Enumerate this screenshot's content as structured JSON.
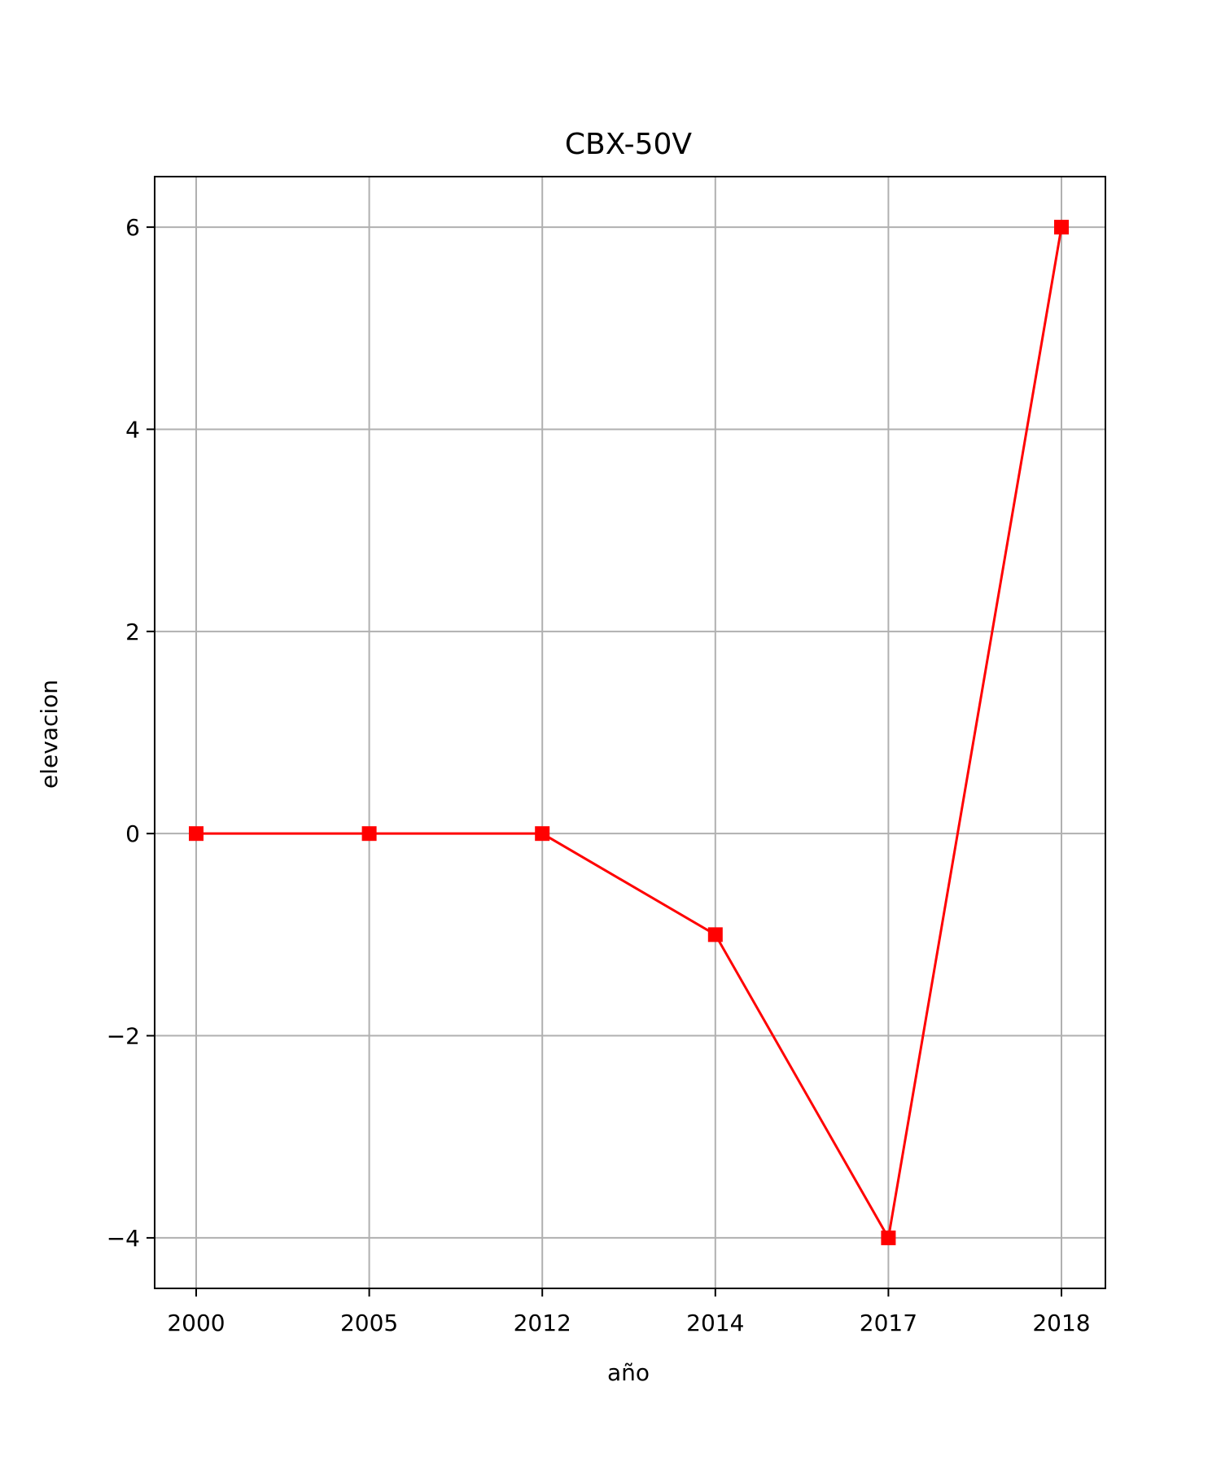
{
  "chart_data": {
    "type": "line",
    "title": "CBX-50V",
    "xlabel": "año",
    "ylabel": "elevacion",
    "categories": [
      "2000",
      "2005",
      "2012",
      "2014",
      "2017",
      "2018"
    ],
    "series": [
      {
        "values": [
          0,
          0,
          0,
          -1,
          -4,
          6
        ],
        "color": "#ff0000",
        "marker": "square"
      }
    ],
    "yticks": [
      -4,
      -2,
      0,
      2,
      4,
      6
    ],
    "ytick_labels": [
      "−4",
      "−2",
      "0",
      "2",
      "4",
      "6"
    ],
    "ylim": [
      -4.5,
      6.5
    ],
    "grid": true,
    "legend": "none"
  }
}
